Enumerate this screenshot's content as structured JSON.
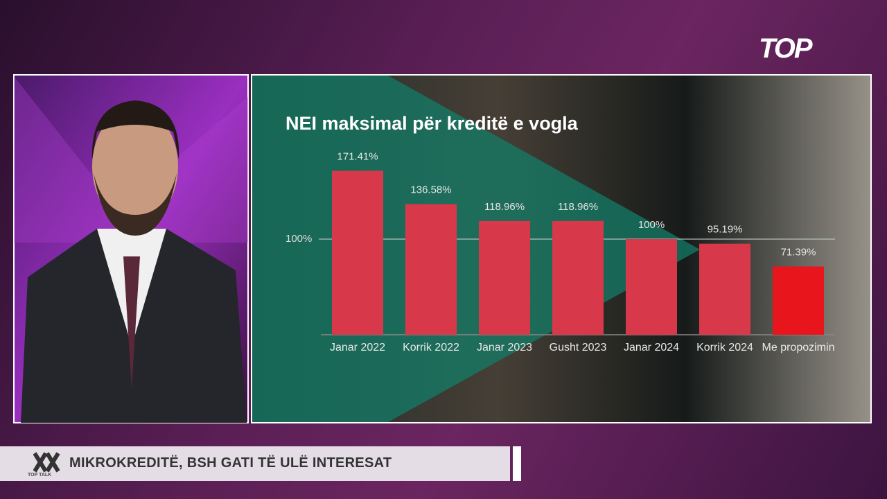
{
  "chart_data": {
    "type": "bar",
    "title": "NEI maksimal për kreditë e vogla",
    "categories": [
      "Janar 2022",
      "Korrik 2022",
      "Janar 2023",
      "Gusht 2023",
      "Janar 2024",
      "Korrik 2024",
      "Me propozimin"
    ],
    "values": [
      171.41,
      136.58,
      118.96,
      118.96,
      100,
      95.19,
      71.39
    ],
    "value_labels": [
      "171.41%",
      "136.58%",
      "118.96%",
      "118.96%",
      "100%",
      "95.19%",
      "71.39%"
    ],
    "colors": [
      "#d8394a",
      "#d8394a",
      "#d8394a",
      "#d8394a",
      "#d8394a",
      "#d8394a",
      "#e8161c"
    ],
    "ylim": [
      0,
      200
    ],
    "yticks": [
      {
        "value": 100,
        "label": "100%"
      }
    ],
    "grid": true
  },
  "ticker": {
    "headline": "MIKROKREDITË, BSH GATI TË ULË INTERESAT",
    "show": "TOP TALK"
  },
  "channel_logo": "TOP"
}
